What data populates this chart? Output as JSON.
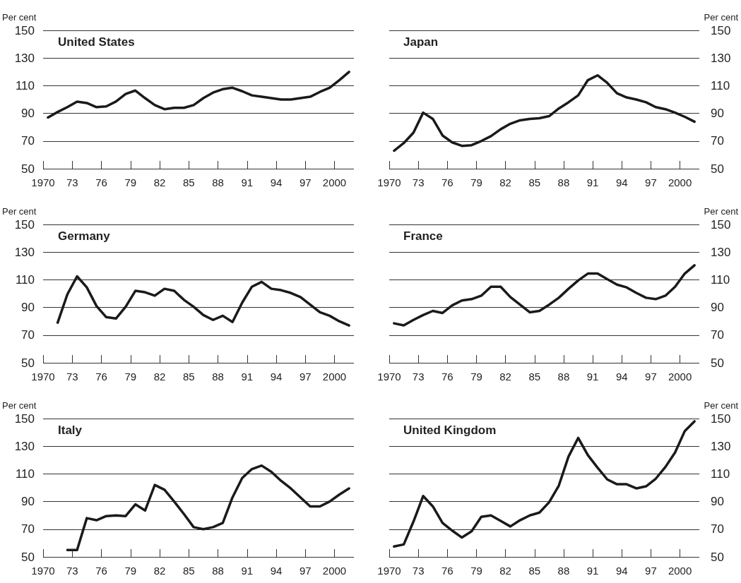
{
  "chart_data": [
    {
      "type": "line",
      "title": "United States",
      "ylabel": "Per cent",
      "color": "#1a1a1a",
      "grid": "y",
      "xlim": [
        1970,
        2002
      ],
      "ylim": [
        50,
        150
      ],
      "yticks": [
        50,
        70,
        90,
        110,
        130,
        150
      ],
      "xticks": [
        {
          "value": 1970,
          "label": "1970"
        },
        {
          "value": 1973,
          "label": "73"
        },
        {
          "value": 1976,
          "label": "76"
        },
        {
          "value": 1979,
          "label": "79"
        },
        {
          "value": 1982,
          "label": "82"
        },
        {
          "value": 1985,
          "label": "85"
        },
        {
          "value": 1988,
          "label": "88"
        },
        {
          "value": 1991,
          "label": "91"
        },
        {
          "value": 1994,
          "label": "94"
        },
        {
          "value": 1997,
          "label": "97"
        },
        {
          "value": 2000,
          "label": "2000"
        }
      ],
      "x": [
        1970.5,
        1971.5,
        1972.5,
        1973.5,
        1974.5,
        1975.5,
        1976.5,
        1977.5,
        1978.5,
        1979.5,
        1980.5,
        1981.5,
        1982.5,
        1983.5,
        1984.5,
        1985.5,
        1986.5,
        1987.5,
        1988.5,
        1989.5,
        1990.5,
        1991.5,
        1992.5,
        1993.5,
        1994.5,
        1995.5,
        1996.5,
        1997.5,
        1998.5,
        1999.5,
        2000.5,
        2001.5
      ],
      "values": [
        87,
        91,
        94.5,
        98.5,
        97.5,
        94.5,
        95,
        98.5,
        104,
        106.5,
        101,
        96,
        93,
        94,
        94,
        96,
        101,
        105,
        107.5,
        108.5,
        106,
        103,
        102,
        101,
        100,
        100,
        101,
        102,
        105.5,
        108.5,
        114,
        120
      ]
    },
    {
      "type": "line",
      "title": "Japan",
      "ylabel": "Per cent",
      "color": "#1a1a1a",
      "grid": "y",
      "xlim": [
        1970,
        2002
      ],
      "ylim": [
        50,
        150
      ],
      "yticks": [
        50,
        70,
        90,
        110,
        130,
        150
      ],
      "xticks": [
        {
          "value": 1970,
          "label": "1970"
        },
        {
          "value": 1973,
          "label": "73"
        },
        {
          "value": 1976,
          "label": "76"
        },
        {
          "value": 1979,
          "label": "79"
        },
        {
          "value": 1982,
          "label": "82"
        },
        {
          "value": 1985,
          "label": "85"
        },
        {
          "value": 1988,
          "label": "88"
        },
        {
          "value": 1991,
          "label": "91"
        },
        {
          "value": 1994,
          "label": "94"
        },
        {
          "value": 1997,
          "label": "97"
        },
        {
          "value": 2000,
          "label": "2000"
        }
      ],
      "x": [
        1970.5,
        1971.5,
        1972.5,
        1973.5,
        1974.5,
        1975.5,
        1976.5,
        1977.5,
        1978.5,
        1979.5,
        1980.5,
        1981.5,
        1982.5,
        1983.5,
        1984.5,
        1985.5,
        1986.5,
        1987.5,
        1988.5,
        1989.5,
        1990.5,
        1991.5,
        1992.5,
        1993.5,
        1994.5,
        1995.5,
        1996.5,
        1997.5,
        1998.5,
        1999.5,
        2000.5,
        2001.5
      ],
      "values": [
        63,
        68.5,
        76,
        90.5,
        86,
        74,
        69,
        66.5,
        67,
        70,
        73.5,
        78.5,
        82.5,
        85,
        86,
        86.5,
        88,
        93.5,
        98,
        103,
        114,
        117.5,
        112,
        104.5,
        101.5,
        100,
        98,
        94.5,
        93,
        90.5,
        87.5,
        84
      ]
    },
    {
      "type": "line",
      "title": "Germany",
      "ylabel": "Per cent",
      "color": "#1a1a1a",
      "grid": "y",
      "xlim": [
        1970,
        2002
      ],
      "ylim": [
        50,
        150
      ],
      "yticks": [
        50,
        70,
        90,
        110,
        130,
        150
      ],
      "xticks": [
        {
          "value": 1970,
          "label": "1970"
        },
        {
          "value": 1973,
          "label": "73"
        },
        {
          "value": 1976,
          "label": "76"
        },
        {
          "value": 1979,
          "label": "79"
        },
        {
          "value": 1982,
          "label": "82"
        },
        {
          "value": 1985,
          "label": "85"
        },
        {
          "value": 1988,
          "label": "88"
        },
        {
          "value": 1991,
          "label": "91"
        },
        {
          "value": 1994,
          "label": "94"
        },
        {
          "value": 1997,
          "label": "97"
        },
        {
          "value": 2000,
          "label": "2000"
        }
      ],
      "x": [
        1971.5,
        1972.5,
        1973.5,
        1974.5,
        1975.5,
        1976.5,
        1977.5,
        1978.5,
        1979.5,
        1980.5,
        1981.5,
        1982.5,
        1983.5,
        1984.5,
        1985.5,
        1986.5,
        1987.5,
        1988.5,
        1989.5,
        1990.5,
        1991.5,
        1992.5,
        1993.5,
        1994.5,
        1995.5,
        1996.5,
        1997.5,
        1998.5,
        1999.5,
        2000.5,
        2001.5
      ],
      "values": [
        79,
        99.5,
        112.5,
        104.5,
        91,
        83,
        82,
        90.5,
        102,
        101,
        98.5,
        103.5,
        102,
        95.5,
        90.5,
        84.5,
        81,
        84,
        79.5,
        93.5,
        105,
        108.5,
        103.5,
        102.5,
        100.5,
        97.5,
        92,
        86.5,
        84,
        80,
        77
      ]
    },
    {
      "type": "line",
      "title": "France",
      "ylabel": "Per cent",
      "color": "#1a1a1a",
      "grid": "y",
      "xlim": [
        1970,
        2002
      ],
      "ylim": [
        50,
        150
      ],
      "yticks": [
        50,
        70,
        90,
        110,
        130,
        150
      ],
      "xticks": [
        {
          "value": 1970,
          "label": "1970"
        },
        {
          "value": 1973,
          "label": "73"
        },
        {
          "value": 1976,
          "label": "76"
        },
        {
          "value": 1979,
          "label": "79"
        },
        {
          "value": 1982,
          "label": "82"
        },
        {
          "value": 1985,
          "label": "85"
        },
        {
          "value": 1988,
          "label": "88"
        },
        {
          "value": 1991,
          "label": "91"
        },
        {
          "value": 1994,
          "label": "94"
        },
        {
          "value": 1997,
          "label": "97"
        },
        {
          "value": 2000,
          "label": "2000"
        }
      ],
      "x": [
        1970.5,
        1971.5,
        1972.5,
        1973.5,
        1974.5,
        1975.5,
        1976.5,
        1977.5,
        1978.5,
        1979.5,
        1980.5,
        1981.5,
        1982.5,
        1983.5,
        1984.5,
        1985.5,
        1986.5,
        1987.5,
        1988.5,
        1989.5,
        1990.5,
        1991.5,
        1992.5,
        1993.5,
        1994.5,
        1995.5,
        1996.5,
        1997.5,
        1998.5,
        1999.5,
        2000.5,
        2001.5
      ],
      "values": [
        78.5,
        77,
        81,
        84.5,
        87.5,
        86,
        91.5,
        95,
        96,
        98.5,
        105,
        105,
        97.5,
        92,
        86.5,
        87.5,
        92,
        97,
        103.5,
        109.5,
        114.5,
        114.5,
        110.5,
        106.5,
        104.5,
        100.5,
        97,
        96,
        98.5,
        105,
        114.5,
        120.5
      ]
    },
    {
      "type": "line",
      "title": "Italy",
      "ylabel": "Per cent",
      "color": "#1a1a1a",
      "grid": "y",
      "xlim": [
        1970,
        2002
      ],
      "ylim": [
        50,
        150
      ],
      "yticks": [
        50,
        70,
        90,
        110,
        130,
        150
      ],
      "xticks": [
        {
          "value": 1970,
          "label": "1970"
        },
        {
          "value": 1973,
          "label": "73"
        },
        {
          "value": 1976,
          "label": "76"
        },
        {
          "value": 1979,
          "label": "79"
        },
        {
          "value": 1982,
          "label": "82"
        },
        {
          "value": 1985,
          "label": "85"
        },
        {
          "value": 1988,
          "label": "88"
        },
        {
          "value": 1991,
          "label": "91"
        },
        {
          "value": 1994,
          "label": "94"
        },
        {
          "value": 1997,
          "label": "97"
        },
        {
          "value": 2000,
          "label": "2000"
        }
      ],
      "x": [
        1972.5,
        1973.5,
        1974.5,
        1975.5,
        1976.5,
        1977.5,
        1978.5,
        1979.5,
        1980.5,
        1981.5,
        1982.5,
        1983.5,
        1984.5,
        1985.5,
        1986.5,
        1987.5,
        1988.5,
        1989.5,
        1990.5,
        1991.5,
        1992.5,
        1993.5,
        1994.5,
        1995.5,
        1996.5,
        1997.5,
        1998.5,
        1999.5,
        2000.5,
        2001.5
      ],
      "values": [
        55,
        55,
        78,
        76.5,
        79.5,
        80,
        79.5,
        88,
        83.5,
        102,
        98.5,
        90,
        81,
        71.5,
        70,
        71.5,
        74.5,
        93,
        107,
        113.5,
        116,
        111.5,
        105,
        99.5,
        93,
        86.5,
        86.5,
        90,
        95,
        99.5
      ]
    },
    {
      "type": "line",
      "title": "United Kingdom",
      "ylabel": "Per cent",
      "color": "#1a1a1a",
      "grid": "y",
      "xlim": [
        1970,
        2002
      ],
      "ylim": [
        50,
        150
      ],
      "yticks": [
        50,
        70,
        90,
        110,
        130,
        150
      ],
      "xticks": [
        {
          "value": 1970,
          "label": "1970"
        },
        {
          "value": 1973,
          "label": "73"
        },
        {
          "value": 1976,
          "label": "76"
        },
        {
          "value": 1979,
          "label": "79"
        },
        {
          "value": 1982,
          "label": "82"
        },
        {
          "value": 1985,
          "label": "85"
        },
        {
          "value": 1988,
          "label": "88"
        },
        {
          "value": 1991,
          "label": "91"
        },
        {
          "value": 1994,
          "label": "94"
        },
        {
          "value": 1997,
          "label": "97"
        },
        {
          "value": 2000,
          "label": "2000"
        }
      ],
      "x": [
        1970.5,
        1971.5,
        1972.5,
        1973.5,
        1974.5,
        1975.5,
        1976.5,
        1977.5,
        1978.5,
        1979.5,
        1980.5,
        1981.5,
        1982.5,
        1983.5,
        1984.5,
        1985.5,
        1986.5,
        1987.5,
        1988.5,
        1989.5,
        1990.5,
        1991.5,
        1992.5,
        1993.5,
        1994.5,
        1995.5,
        1996.5,
        1997.5,
        1998.5,
        1999.5,
        2000.5,
        2001.5
      ],
      "values": [
        57.5,
        59,
        75.5,
        94,
        86.5,
        74.5,
        69,
        64,
        68.5,
        79,
        80,
        76,
        72,
        76.5,
        80,
        82,
        89.5,
        101.5,
        122.5,
        136,
        123.5,
        114.5,
        106,
        102.5,
        102.5,
        99.5,
        101,
        106.5,
        115,
        125.5,
        141,
        148
      ]
    }
  ]
}
